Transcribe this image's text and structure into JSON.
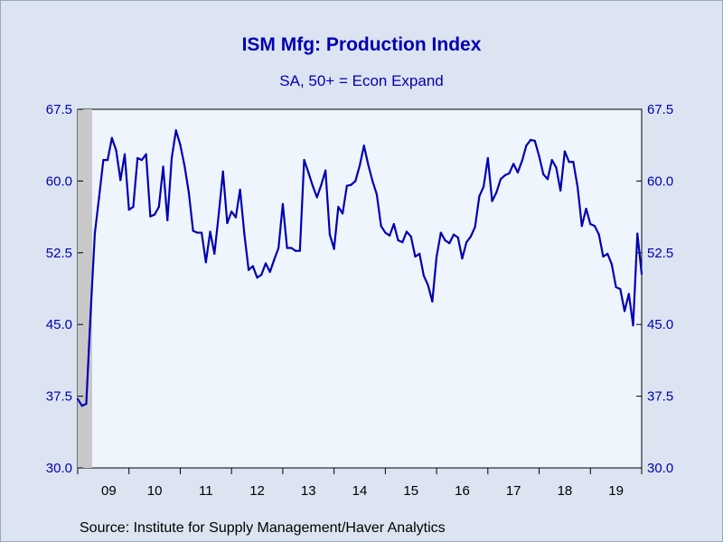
{
  "chart_data": {
    "type": "line",
    "title": "ISM Mfg: Production Index",
    "subtitle": "SA, 50+ = Econ Expand",
    "source": "Source:  Institute for Supply Management/Haver Analytics",
    "ylim": [
      30.0,
      67.5
    ],
    "yticks": [
      "67.5",
      "60.0",
      "52.5",
      "45.0",
      "37.5",
      "30.0"
    ],
    "ytick_values": [
      67.5,
      60.0,
      52.5,
      45.0,
      37.5,
      30.0
    ],
    "x_start": "2009-01",
    "x_end": "2019-12",
    "x_ticks": [
      "09",
      "10",
      "11",
      "12",
      "13",
      "14",
      "15",
      "16",
      "17",
      "18",
      "19"
    ],
    "recession_shading": {
      "from": "2009-01",
      "to": "2009-06"
    },
    "grid": false,
    "colors": {
      "line": "#0000b3",
      "text": "#0000b3",
      "plot_bg": "#eef5fd",
      "recession": "#c8c8c8"
    },
    "series": [
      {
        "values": [
          37.2,
          36.5,
          36.7,
          46.0,
          54.5,
          58.3,
          62.2,
          62.2,
          64.5,
          63.2,
          60.1,
          62.8,
          57.0,
          57.3,
          62.4,
          62.2,
          62.8,
          56.3,
          56.5,
          57.3,
          61.5,
          55.9,
          62.4,
          65.3,
          63.8,
          61.6,
          58.8,
          54.8,
          54.6,
          54.6,
          51.5,
          54.7,
          52.4,
          56.5,
          61.0,
          55.6,
          56.8,
          56.2,
          59.1,
          54.5,
          50.7,
          51.1,
          49.9,
          50.2,
          51.4,
          50.5,
          51.8,
          53.0,
          57.6,
          53.0,
          53.0,
          52.7,
          52.7,
          62.2,
          60.9,
          59.5,
          58.3,
          59.6,
          61.1,
          54.4,
          52.9,
          57.3,
          56.6,
          59.5,
          59.6,
          60.0,
          61.6,
          63.7,
          61.7,
          60.0,
          58.6,
          55.3,
          54.6,
          54.3,
          55.5,
          53.8,
          53.6,
          54.7,
          54.2,
          52.1,
          52.4,
          50.1,
          49.1,
          47.4,
          52.1,
          54.6,
          53.8,
          53.5,
          54.4,
          54.1,
          51.9,
          53.6,
          54.2,
          55.2,
          58.4,
          59.4,
          62.4,
          57.9,
          58.8,
          60.2,
          60.6,
          60.8,
          61.8,
          60.9,
          62.1,
          63.7,
          64.3,
          64.2,
          62.6,
          60.7,
          60.2,
          62.2,
          61.4,
          59.0,
          63.1,
          62.0,
          62.0,
          59.4,
          55.3,
          57.1,
          55.5,
          55.3,
          54.4,
          52.1,
          52.4,
          51.3,
          48.9,
          48.7,
          46.4,
          48.2,
          44.9,
          54.5,
          50.3
        ]
      }
    ]
  }
}
